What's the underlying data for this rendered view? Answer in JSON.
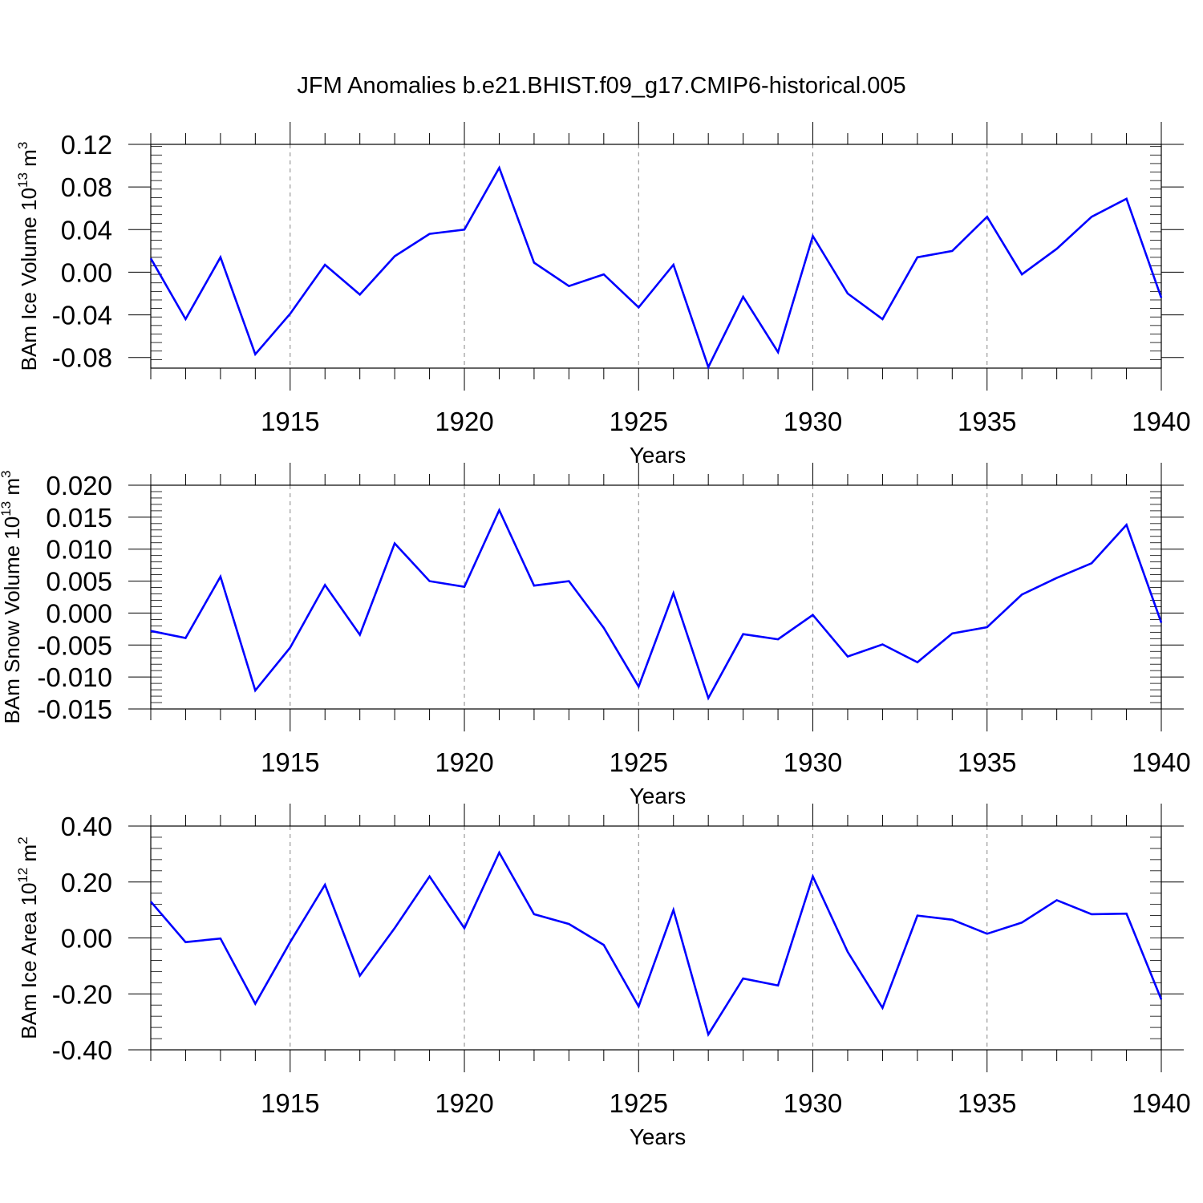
{
  "title": "JFM Anomalies b.e21.BHIST.f09_g17.CMIP6-historical.005",
  "line_color": "#0000ff",
  "chart_data": [
    {
      "type": "line",
      "ylabel": {
        "prefix": "BAm Ice Volume 10",
        "exponent": "13",
        "unit": " m",
        "unit_exponent": "3"
      },
      "xlabel": "Years",
      "xlim": [
        1911,
        1940
      ],
      "ylim": [
        -0.09,
        0.12
      ],
      "y_ticks": [
        0.12,
        0.08,
        0.04,
        0.0,
        -0.04,
        -0.08
      ],
      "y_tick_labels": [
        "0.12",
        "0.08",
        "0.04",
        "0.00",
        "-0.04",
        "-0.08"
      ],
      "x_ticks": [
        1915,
        1920,
        1925,
        1930,
        1935,
        1940
      ],
      "x_tick_labels": [
        "1915",
        "1920",
        "1925",
        "1930",
        "1935",
        "1940"
      ],
      "x": [
        1911,
        1912,
        1913,
        1914,
        1915,
        1916,
        1917,
        1918,
        1919,
        1920,
        1921,
        1922,
        1923,
        1924,
        1925,
        1926,
        1927,
        1928,
        1929,
        1930,
        1931,
        1932,
        1933,
        1934,
        1935,
        1936,
        1937,
        1938,
        1939,
        1940
      ],
      "values": [
        0.013,
        -0.044,
        0.014,
        -0.077,
        -0.039,
        0.007,
        -0.021,
        0.015,
        0.036,
        0.04,
        0.098,
        0.009,
        -0.013,
        -0.002,
        -0.033,
        0.007,
        -0.089,
        -0.023,
        -0.075,
        0.034,
        -0.02,
        -0.044,
        0.014,
        0.02,
        0.052,
        -0.002,
        0.022,
        0.052,
        0.069,
        -0.024
      ]
    },
    {
      "type": "line",
      "ylabel": {
        "prefix": "BAm Snow Volume 10",
        "exponent": "13",
        "unit": " m",
        "unit_exponent": "3"
      },
      "xlabel": "Years",
      "xlim": [
        1911,
        1940
      ],
      "ylim": [
        -0.015,
        0.02
      ],
      "y_ticks": [
        0.02,
        0.015,
        0.01,
        0.005,
        0.0,
        -0.005,
        -0.01,
        -0.015
      ],
      "y_tick_labels": [
        "0.020",
        "0.015",
        "0.010",
        "0.005",
        "0.000",
        "-0.005",
        "-0.010",
        "-0.015"
      ],
      "x_ticks": [
        1915,
        1920,
        1925,
        1930,
        1935,
        1940
      ],
      "x_tick_labels": [
        "1915",
        "1920",
        "1925",
        "1930",
        "1935",
        "1940"
      ],
      "x": [
        1911,
        1912,
        1913,
        1914,
        1915,
        1916,
        1917,
        1918,
        1919,
        1920,
        1921,
        1922,
        1923,
        1924,
        1925,
        1926,
        1927,
        1928,
        1929,
        1930,
        1931,
        1932,
        1933,
        1934,
        1935,
        1936,
        1937,
        1938,
        1939,
        1940
      ],
      "values": [
        -0.0028,
        -0.0039,
        0.0057,
        -0.0121,
        -0.0054,
        0.0044,
        -0.0034,
        0.0109,
        0.005,
        0.0041,
        0.0161,
        0.0043,
        0.005,
        -0.0023,
        -0.0115,
        0.0031,
        -0.0133,
        -0.0033,
        -0.0041,
        -0.0003,
        -0.0068,
        -0.0049,
        -0.0077,
        -0.0032,
        -0.0022,
        0.0029,
        0.0055,
        0.0078,
        0.0138,
        -0.0015
      ]
    },
    {
      "type": "line",
      "ylabel": {
        "prefix": "BAm Ice Area 10",
        "exponent": "12",
        "unit": " m",
        "unit_exponent": "2"
      },
      "xlabel": "Years",
      "xlim": [
        1911,
        1940
      ],
      "ylim": [
        -0.4,
        0.4
      ],
      "y_ticks": [
        0.4,
        0.2,
        0.0,
        -0.2,
        -0.4
      ],
      "y_tick_labels": [
        "0.40",
        "0.20",
        "0.00",
        "-0.20",
        "-0.40"
      ],
      "x_ticks": [
        1915,
        1920,
        1925,
        1930,
        1935,
        1940
      ],
      "x_tick_labels": [
        "1915",
        "1920",
        "1925",
        "1930",
        "1935",
        "1940"
      ],
      "x": [
        1911,
        1912,
        1913,
        1914,
        1915,
        1916,
        1917,
        1918,
        1919,
        1920,
        1921,
        1922,
        1923,
        1924,
        1925,
        1926,
        1927,
        1928,
        1929,
        1930,
        1931,
        1932,
        1933,
        1934,
        1935,
        1936,
        1937,
        1938,
        1939,
        1940
      ],
      "values": [
        0.13,
        -0.015,
        -0.002,
        -0.235,
        -0.015,
        0.19,
        -0.135,
        0.035,
        0.22,
        0.035,
        0.305,
        0.085,
        0.05,
        -0.025,
        -0.245,
        0.1,
        -0.345,
        -0.145,
        -0.17,
        0.22,
        -0.05,
        -0.25,
        0.08,
        0.065,
        0.015,
        0.055,
        0.135,
        0.085,
        0.087,
        -0.22
      ]
    }
  ]
}
